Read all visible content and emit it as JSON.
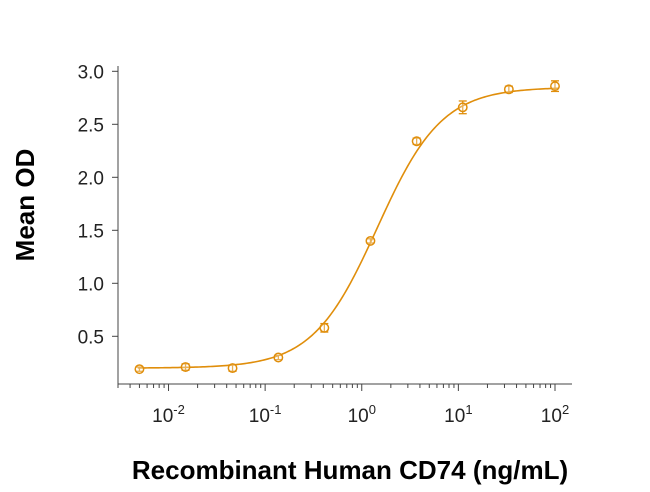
{
  "colors": {
    "series": "#E08E0B",
    "axis": "#444444",
    "text": "#222222"
  },
  "chart_data": {
    "type": "scatter",
    "title": "",
    "xlabel": "Recombinant Human CD74 (ng/mL)",
    "ylabel": "Mean OD",
    "x_scale": "log",
    "xlim": [
      0.003,
      150
    ],
    "ylim": [
      0.05,
      3.05
    ],
    "grid": false,
    "x_ticks": [
      {
        "base": "10",
        "exp": "-2",
        "value": 0.01
      },
      {
        "base": "10",
        "exp": "-1",
        "value": 0.1
      },
      {
        "base": "10",
        "exp": "0",
        "value": 1
      },
      {
        "base": "10",
        "exp": "1",
        "value": 10
      },
      {
        "base": "10",
        "exp": "2",
        "value": 100
      }
    ],
    "y_ticks": [
      {
        "label": "0.5",
        "value": 0.5
      },
      {
        "label": "1.0",
        "value": 1.0
      },
      {
        "label": "1.5",
        "value": 1.5
      },
      {
        "label": "2.0",
        "value": 2.0
      },
      {
        "label": "2.5",
        "value": 2.5
      },
      {
        "label": "3.0",
        "value": 3.0
      }
    ],
    "series": [
      {
        "points": [
          {
            "x": 0.005,
            "y": 0.19,
            "err": 0.02
          },
          {
            "x": 0.015,
            "y": 0.21,
            "err": 0.03
          },
          {
            "x": 0.046,
            "y": 0.2,
            "err": 0.03
          },
          {
            "x": 0.137,
            "y": 0.3,
            "err": 0.02
          },
          {
            "x": 0.41,
            "y": 0.58,
            "err": 0.04
          },
          {
            "x": 1.23,
            "y": 1.4,
            "err": 0.02
          },
          {
            "x": 3.7,
            "y": 2.34,
            "err": 0.03
          },
          {
            "x": 11.1,
            "y": 2.66,
            "err": 0.06
          },
          {
            "x": 33.3,
            "y": 2.83,
            "err": 0.03
          },
          {
            "x": 100,
            "y": 2.86,
            "err": 0.05
          }
        ],
        "fit": {
          "bottom": 0.2,
          "top": 2.85,
          "ec50": 1.45,
          "hill": 1.3
        }
      }
    ]
  }
}
